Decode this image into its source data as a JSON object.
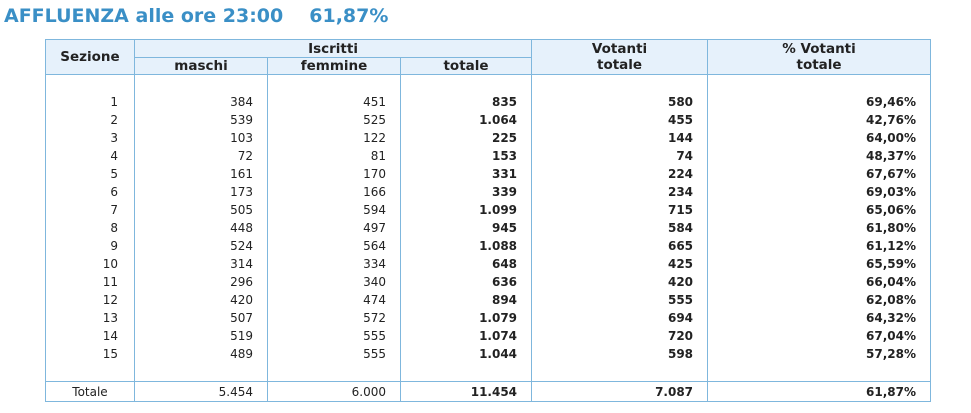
{
  "header": {
    "title": "AFFLUENZA alle ore 23:00",
    "percent": "61,87%"
  },
  "table": {
    "headers": {
      "sezione": "Sezione",
      "iscritti": "Iscritti",
      "maschi": "maschi",
      "femmine": "femmine",
      "totale": "totale",
      "votanti_line1": "Votanti",
      "votanti_line2": "totale",
      "pct_line1": "% Votanti",
      "pct_line2": "totale"
    },
    "rows": [
      {
        "sezione": "1",
        "maschi": "384",
        "femmine": "451",
        "totale": "835",
        "votanti": "580",
        "pct": "69,46%"
      },
      {
        "sezione": "2",
        "maschi": "539",
        "femmine": "525",
        "totale": "1.064",
        "votanti": "455",
        "pct": "42,76%"
      },
      {
        "sezione": "3",
        "maschi": "103",
        "femmine": "122",
        "totale": "225",
        "votanti": "144",
        "pct": "64,00%"
      },
      {
        "sezione": "4",
        "maschi": "72",
        "femmine": "81",
        "totale": "153",
        "votanti": "74",
        "pct": "48,37%"
      },
      {
        "sezione": "5",
        "maschi": "161",
        "femmine": "170",
        "totale": "331",
        "votanti": "224",
        "pct": "67,67%"
      },
      {
        "sezione": "6",
        "maschi": "173",
        "femmine": "166",
        "totale": "339",
        "votanti": "234",
        "pct": "69,03%"
      },
      {
        "sezione": "7",
        "maschi": "505",
        "femmine": "594",
        "totale": "1.099",
        "votanti": "715",
        "pct": "65,06%"
      },
      {
        "sezione": "8",
        "maschi": "448",
        "femmine": "497",
        "totale": "945",
        "votanti": "584",
        "pct": "61,80%"
      },
      {
        "sezione": "9",
        "maschi": "524",
        "femmine": "564",
        "totale": "1.088",
        "votanti": "665",
        "pct": "61,12%"
      },
      {
        "sezione": "10",
        "maschi": "314",
        "femmine": "334",
        "totale": "648",
        "votanti": "425",
        "pct": "65,59%"
      },
      {
        "sezione": "11",
        "maschi": "296",
        "femmine": "340",
        "totale": "636",
        "votanti": "420",
        "pct": "66,04%"
      },
      {
        "sezione": "12",
        "maschi": "420",
        "femmine": "474",
        "totale": "894",
        "votanti": "555",
        "pct": "62,08%"
      },
      {
        "sezione": "13",
        "maschi": "507",
        "femmine": "572",
        "totale": "1.079",
        "votanti": "694",
        "pct": "64,32%"
      },
      {
        "sezione": "14",
        "maschi": "519",
        "femmine": "555",
        "totale": "1.074",
        "votanti": "720",
        "pct": "67,04%"
      },
      {
        "sezione": "15",
        "maschi": "489",
        "femmine": "555",
        "totale": "1.044",
        "votanti": "598",
        "pct": "57,28%"
      }
    ],
    "total": {
      "label": "Totale",
      "maschi": "5.454",
      "femmine": "6.000",
      "totale": "11.454",
      "votanti": "7.087",
      "pct": "61,87%"
    }
  },
  "colors": {
    "title": "#3a8fc6",
    "header_bg": "#e6f1fb",
    "border": "#7fb7dd"
  }
}
